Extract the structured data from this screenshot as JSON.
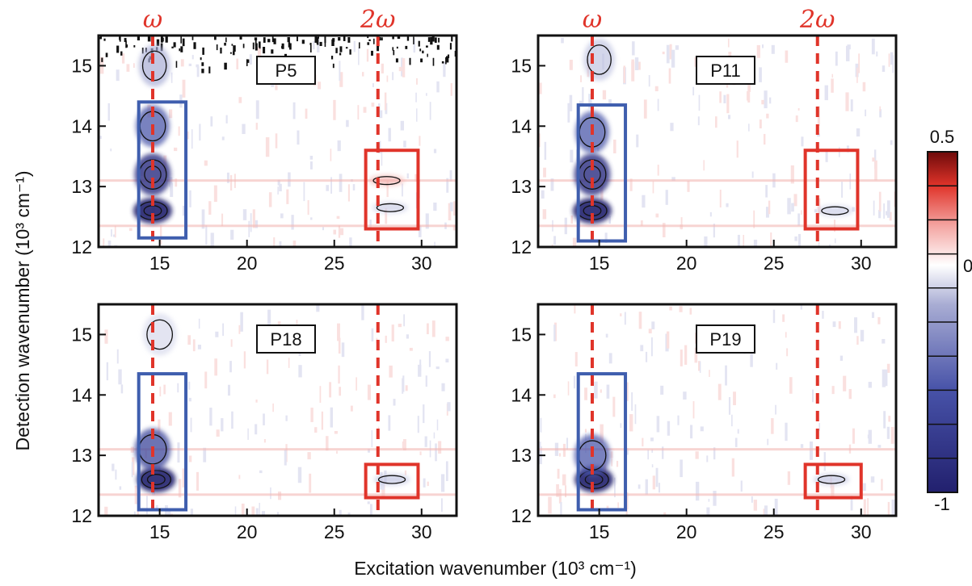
{
  "chart_data": {
    "type": "heatmap",
    "xlabel": "Excitation wavenumber (10³ cm⁻¹)",
    "ylabel": "Detection wavenumber (10³ cm⁻¹)",
    "xlim": [
      11.5,
      32
    ],
    "ylim": [
      12,
      15.5
    ],
    "x_ticks": [
      15,
      20,
      25,
      30
    ],
    "x_tick_labels": [
      "15",
      "20",
      "25",
      "30"
    ],
    "y_ticks": [
      12,
      13,
      14,
      15
    ],
    "y_tick_labels": [
      "12",
      "13",
      "14",
      "15"
    ],
    "reference_lines": [
      {
        "label": "ω",
        "x": 14.6
      },
      {
        "label": "2ω",
        "x": 27.5
      }
    ],
    "colorbar": {
      "range": [
        -1,
        0.5
      ],
      "tick_labels": [
        "0.5",
        "0",
        "-1"
      ],
      "low_color": "#22206e",
      "mid_color": "#ffffff",
      "high_color": "#6e0a0a"
    },
    "panels": [
      {
        "label": "P5",
        "blue_box": {
          "x": [
            13.8,
            16.5
          ],
          "y": [
            12.15,
            14.4
          ]
        },
        "red_box": {
          "x": [
            26.8,
            29.8
          ],
          "y": [
            12.3,
            13.6
          ]
        },
        "features": [
          {
            "x": 14.6,
            "y": 12.6,
            "value": -1.0
          },
          {
            "x": 14.6,
            "y": 13.2,
            "value": -0.8
          },
          {
            "x": 14.6,
            "y": 14.0,
            "value": -0.5
          },
          {
            "x": 14.7,
            "y": 15.0,
            "value": -0.4
          },
          {
            "x": 28.2,
            "y": 12.65,
            "value": -0.25
          },
          {
            "x": 28.0,
            "y": 13.1,
            "value": 0.2
          }
        ]
      },
      {
        "label": "P11",
        "blue_box": {
          "x": [
            13.8,
            16.5
          ],
          "y": [
            12.1,
            14.35
          ]
        },
        "red_box": {
          "x": [
            26.8,
            29.8
          ],
          "y": [
            12.3,
            13.6
          ]
        },
        "features": [
          {
            "x": 14.6,
            "y": 12.6,
            "value": -1.0
          },
          {
            "x": 14.6,
            "y": 13.2,
            "value": -0.8
          },
          {
            "x": 14.6,
            "y": 13.9,
            "value": -0.5
          },
          {
            "x": 15.0,
            "y": 15.1,
            "value": -0.3
          },
          {
            "x": 28.5,
            "y": 12.6,
            "value": -0.25
          }
        ]
      },
      {
        "label": "P18",
        "blue_box": {
          "x": [
            13.8,
            16.5
          ],
          "y": [
            12.1,
            14.35
          ]
        },
        "red_box": {
          "x": [
            26.8,
            29.8
          ],
          "y": [
            12.3,
            12.85
          ]
        },
        "features": [
          {
            "x": 14.8,
            "y": 12.6,
            "value": -1.0
          },
          {
            "x": 14.6,
            "y": 13.1,
            "value": -0.6
          },
          {
            "x": 15.0,
            "y": 15.0,
            "value": -0.2
          },
          {
            "x": 28.3,
            "y": 12.6,
            "value": -0.3
          }
        ]
      },
      {
        "label": "P19",
        "blue_box": {
          "x": [
            13.8,
            16.5
          ],
          "y": [
            12.1,
            14.35
          ]
        },
        "red_box": {
          "x": [
            26.8,
            30.0
          ],
          "y": [
            12.3,
            12.85
          ]
        },
        "features": [
          {
            "x": 14.7,
            "y": 12.6,
            "value": -1.0
          },
          {
            "x": 14.6,
            "y": 13.0,
            "value": -0.5
          },
          {
            "x": 28.3,
            "y": 12.6,
            "value": -0.3
          }
        ]
      }
    ]
  }
}
